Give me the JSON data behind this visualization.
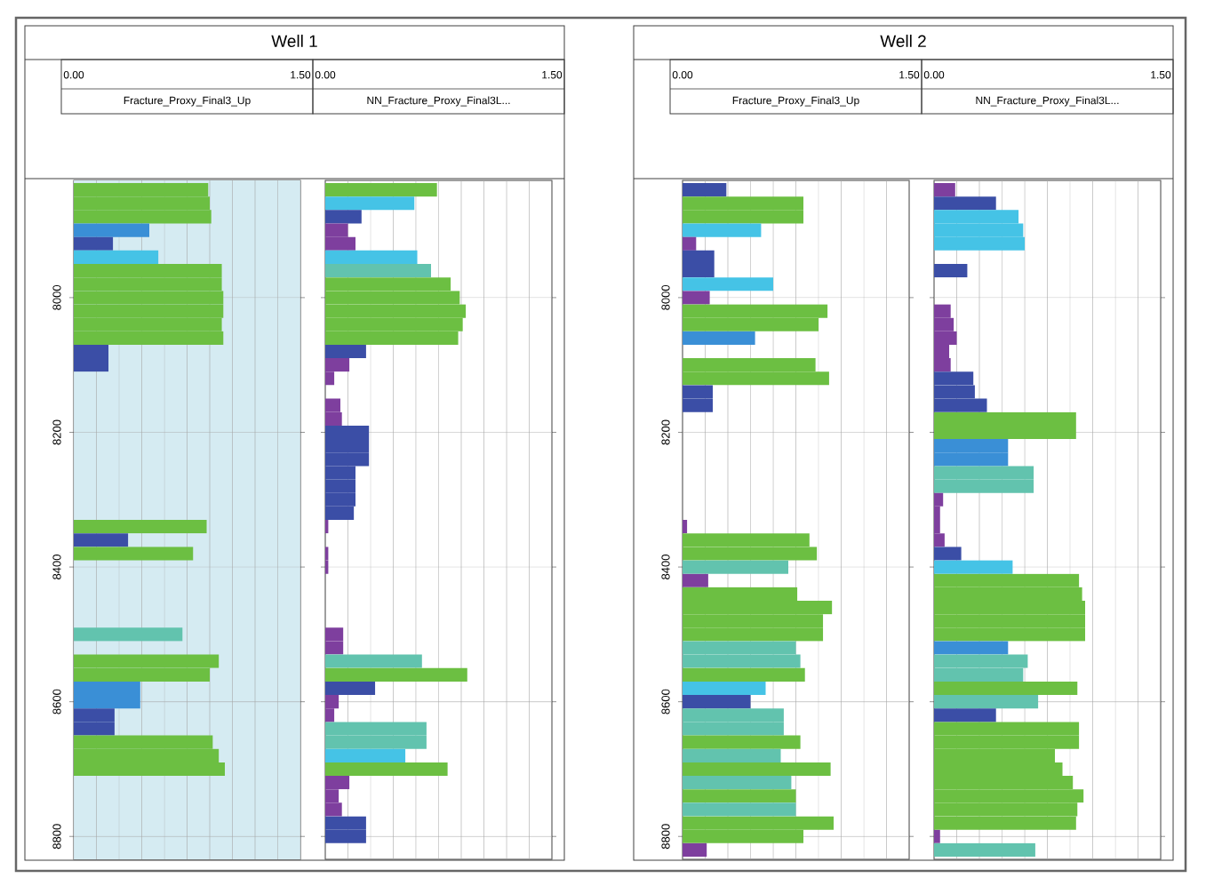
{
  "chart_data": [
    {
      "type": "bar",
      "orientation": "horizontal",
      "title": "Well 1",
      "xlabel": "Fracture_Proxy_Final3_Up",
      "x": [
        7840,
        7860,
        7880,
        7900,
        7920,
        7940,
        7960,
        7980,
        8000,
        8020,
        8040,
        8060,
        8080,
        8100,
        8120,
        8140,
        8160,
        8180,
        8200,
        8220,
        8240,
        8260,
        8280,
        8300,
        8320,
        8340,
        8360,
        8380,
        8400,
        8420,
        8440,
        8460,
        8480,
        8500,
        8520,
        8540,
        8560,
        8580,
        8600,
        8620,
        8640,
        8660,
        8680,
        8700
      ],
      "values": [
        0.89,
        0.9,
        0.91,
        0.5,
        0.26,
        0.56,
        0.98,
        0.98,
        0.99,
        0.99,
        0.98,
        0.99,
        0.23,
        0.23,
        null,
        null,
        null,
        null,
        null,
        null,
        null,
        null,
        null,
        null,
        null,
        0.88,
        0.36,
        0.79,
        null,
        null,
        null,
        null,
        null,
        0.72,
        null,
        0.96,
        0.9,
        0.44,
        0.44,
        0.27,
        0.27,
        0.92,
        0.96,
        1.0
      ],
      "colors": [
        "#6cbf42",
        "#6cbf42",
        "#6cbf42",
        "#3a8fd6",
        "#3b4ea6",
        "#45c3e6",
        "#6cbf42",
        "#6cbf42",
        "#6cbf42",
        "#6cbf42",
        "#6cbf42",
        "#6cbf42",
        "#3b4ea6",
        "#3b4ea6",
        null,
        null,
        null,
        null,
        null,
        null,
        null,
        null,
        null,
        null,
        null,
        "#6cbf42",
        "#3b4ea6",
        "#6cbf42",
        null,
        null,
        null,
        null,
        null,
        "#62c3ae",
        null,
        "#6cbf42",
        "#6cbf42",
        "#3a8fd6",
        "#3a8fd6",
        "#3b4ea6",
        "#3b4ea6",
        "#6cbf42",
        "#6cbf42",
        "#6cbf42"
      ],
      "xlim": [
        0,
        1.5
      ],
      "xticks": [
        {
          "value": 0,
          "label": "0.00"
        },
        {
          "value": 0.15,
          "label": null
        },
        {
          "value": 0.3,
          "label": null
        },
        {
          "value": 0.45,
          "label": null
        },
        {
          "value": 0.6,
          "label": null
        },
        {
          "value": 0.75,
          "label": null
        },
        {
          "value": 0.9,
          "label": null
        },
        {
          "value": 1.05,
          "label": null
        },
        {
          "value": 1.2,
          "label": null
        },
        {
          "value": 1.35,
          "label": null
        },
        {
          "value": 1.5,
          "label": "1.50"
        }
      ],
      "ylim": [
        8834,
        7826
      ],
      "yticks": [
        8000,
        8200,
        8400,
        8600,
        8800
      ],
      "grid": true,
      "bands": [
        {
          "axis": "x",
          "from": 0,
          "to": 1.5,
          "color": "#d5ebf2"
        }
      ]
    },
    {
      "type": "bar",
      "orientation": "horizontal",
      "xlabel": "NN_Fracture_Proxy_Final3L...",
      "x": [
        7840,
        7860,
        7880,
        7900,
        7920,
        7940,
        7960,
        7980,
        8000,
        8020,
        8040,
        8060,
        8080,
        8100,
        8120,
        8140,
        8160,
        8180,
        8200,
        8220,
        8240,
        8260,
        8280,
        8300,
        8320,
        8340,
        8360,
        8380,
        8400,
        8420,
        8440,
        8460,
        8480,
        8500,
        8520,
        8540,
        8560,
        8580,
        8600,
        8620,
        8640,
        8660,
        8680,
        8700,
        8720,
        8740,
        8760,
        8780,
        8800
      ],
      "values": [
        0.74,
        0.59,
        0.24,
        0.15,
        0.2,
        0.61,
        0.7,
        0.83,
        0.89,
        0.93,
        0.91,
        0.88,
        0.27,
        0.16,
        0.06,
        null,
        0.1,
        0.11,
        0.29,
        0.29,
        0.29,
        0.2,
        0.2,
        0.2,
        0.19,
        0.02,
        null,
        0.02,
        0.02,
        null,
        null,
        null,
        null,
        0.12,
        0.12,
        0.64,
        0.94,
        0.33,
        0.09,
        0.06,
        0.67,
        0.67,
        0.53,
        0.81,
        0.16,
        0.09,
        0.11,
        0.27,
        0.27
      ],
      "colors": [
        "#6cbf42",
        "#45c3e6",
        "#3b4ea6",
        "#7e3f9e",
        "#7e3f9e",
        "#45c3e6",
        "#62c3ae",
        "#6cbf42",
        "#6cbf42",
        "#6cbf42",
        "#6cbf42",
        "#6cbf42",
        "#3b4ea6",
        "#7e3f9e",
        "#7e3f9e",
        null,
        "#7e3f9e",
        "#7e3f9e",
        "#3b4ea6",
        "#3b4ea6",
        "#3b4ea6",
        "#3b4ea6",
        "#3b4ea6",
        "#3b4ea6",
        "#3b4ea6",
        "#7e3f9e",
        null,
        "#7e3f9e",
        "#7e3f9e",
        null,
        null,
        null,
        null,
        "#7e3f9e",
        "#7e3f9e",
        "#62c3ae",
        "#6cbf42",
        "#3b4ea6",
        "#7e3f9e",
        "#7e3f9e",
        "#62c3ae",
        "#62c3ae",
        "#45c3e6",
        "#6cbf42",
        "#7e3f9e",
        "#7e3f9e",
        "#7e3f9e",
        "#3b4ea6",
        "#3b4ea6"
      ],
      "xlim": [
        0,
        1.5
      ],
      "xticks": [
        {
          "value": 0,
          "label": "0.00"
        },
        {
          "value": 0.15,
          "label": null
        },
        {
          "value": 0.3,
          "label": null
        },
        {
          "value": 0.45,
          "label": null
        },
        {
          "value": 0.6,
          "label": null
        },
        {
          "value": 0.75,
          "label": null
        },
        {
          "value": 0.9,
          "label": null
        },
        {
          "value": 1.05,
          "label": null
        },
        {
          "value": 1.2,
          "label": null
        },
        {
          "value": 1.35,
          "label": null
        },
        {
          "value": 1.5,
          "label": "1.50"
        }
      ],
      "ylim": [
        8834,
        7826
      ],
      "yticks": [
        8000,
        8200,
        8400,
        8600,
        8800
      ],
      "grid": true,
      "tick_labels": "x"
    },
    {
      "type": "bar",
      "orientation": "horizontal",
      "title": "Well 2",
      "xlabel": "Fracture_Proxy_Final3_Up",
      "x": [
        7840,
        7860,
        7880,
        7900,
        7920,
        7940,
        7960,
        7980,
        8000,
        8020,
        8040,
        8060,
        8080,
        8100,
        8120,
        8140,
        8160,
        8180,
        8200,
        8220,
        8240,
        8260,
        8280,
        8300,
        8320,
        8340,
        8360,
        8380,
        8400,
        8420,
        8440,
        8460,
        8480,
        8500,
        8520,
        8540,
        8560,
        8580,
        8600,
        8620,
        8640,
        8660,
        8680,
        8700,
        8720,
        8740,
        8760,
        8780,
        8800,
        8820
      ],
      "values": [
        0.29,
        0.8,
        0.8,
        0.52,
        0.09,
        0.21,
        0.21,
        0.6,
        0.18,
        0.96,
        0.9,
        0.48,
        null,
        0.88,
        0.97,
        0.2,
        0.2,
        null,
        null,
        null,
        null,
        null,
        null,
        null,
        null,
        0.03,
        0.84,
        0.89,
        0.7,
        0.17,
        0.76,
        0.99,
        0.93,
        0.93,
        0.75,
        0.78,
        0.81,
        0.55,
        0.45,
        0.67,
        0.67,
        0.78,
        0.65,
        0.98,
        0.72,
        0.75,
        0.75,
        1.0,
        0.8,
        0.16
      ],
      "colors": [
        "#3b4ea6",
        "#6cbf42",
        "#6cbf42",
        "#45c3e6",
        "#7e3f9e",
        "#3b4ea6",
        "#3b4ea6",
        "#45c3e6",
        "#7e3f9e",
        "#6cbf42",
        "#6cbf42",
        "#3a8fd6",
        null,
        "#6cbf42",
        "#6cbf42",
        "#3b4ea6",
        "#3b4ea6",
        null,
        null,
        null,
        null,
        null,
        null,
        null,
        null,
        "#7e3f9e",
        "#6cbf42",
        "#6cbf42",
        "#62c3ae",
        "#7e3f9e",
        "#6cbf42",
        "#6cbf42",
        "#6cbf42",
        "#6cbf42",
        "#62c3ae",
        "#62c3ae",
        "#6cbf42",
        "#45c3e6",
        "#3b4ea6",
        "#62c3ae",
        "#62c3ae",
        "#6cbf42",
        "#62c3ae",
        "#6cbf42",
        "#62c3ae",
        "#6cbf42",
        "#62c3ae",
        "#6cbf42",
        "#6cbf42",
        "#7e3f9e"
      ],
      "xlim": [
        0,
        1.5
      ],
      "xticks": [
        {
          "value": 0,
          "label": "0.00"
        },
        {
          "value": 0.15,
          "label": null
        },
        {
          "value": 0.3,
          "label": null
        },
        {
          "value": 0.45,
          "label": null
        },
        {
          "value": 0.6,
          "label": null
        },
        {
          "value": 0.75,
          "label": null
        },
        {
          "value": 0.9,
          "label": null
        },
        {
          "value": 1.05,
          "label": null
        },
        {
          "value": 1.2,
          "label": null
        },
        {
          "value": 1.35,
          "label": null
        },
        {
          "value": 1.5,
          "label": "1.50"
        }
      ],
      "ylim": [
        8834,
        7826
      ],
      "yticks": [
        8000,
        8200,
        8400,
        8600,
        8800
      ],
      "grid": true
    },
    {
      "type": "bar",
      "orientation": "horizontal",
      "xlabel": "NN_Fracture_Proxy_Final3L...",
      "x": [
        7840,
        7860,
        7880,
        7900,
        7920,
        7940,
        7960,
        7980,
        8000,
        8020,
        8040,
        8060,
        8080,
        8100,
        8120,
        8140,
        8160,
        8180,
        8200,
        8220,
        8240,
        8260,
        8280,
        8300,
        8320,
        8340,
        8360,
        8380,
        8400,
        8420,
        8440,
        8460,
        8480,
        8500,
        8520,
        8540,
        8560,
        8580,
        8600,
        8620,
        8640,
        8660,
        8680,
        8700,
        8720,
        8740,
        8760,
        8780,
        8800,
        8820
      ],
      "values": [
        0.14,
        0.41,
        0.56,
        0.59,
        0.6,
        null,
        0.22,
        null,
        null,
        0.11,
        0.13,
        0.15,
        0.1,
        0.11,
        0.26,
        0.27,
        0.35,
        0.94,
        0.94,
        0.49,
        0.49,
        0.66,
        0.66,
        0.06,
        0.04,
        0.04,
        0.07,
        0.18,
        0.52,
        0.96,
        0.98,
        1.0,
        1.0,
        1.0,
        0.49,
        0.62,
        0.59,
        0.95,
        0.69,
        0.41,
        0.96,
        0.96,
        0.8,
        0.85,
        0.92,
        0.99,
        0.95,
        0.94,
        0.04,
        0.67
      ],
      "colors": [
        "#7e3f9e",
        "#3b4ea6",
        "#45c3e6",
        "#45c3e6",
        "#45c3e6",
        null,
        "#3b4ea6",
        null,
        null,
        "#7e3f9e",
        "#7e3f9e",
        "#7e3f9e",
        "#7e3f9e",
        "#7e3f9e",
        "#3b4ea6",
        "#3b4ea6",
        "#3b4ea6",
        "#6cbf42",
        "#6cbf42",
        "#3a8fd6",
        "#3a8fd6",
        "#62c3ae",
        "#62c3ae",
        "#7e3f9e",
        "#7e3f9e",
        "#7e3f9e",
        "#7e3f9e",
        "#3b4ea6",
        "#45c3e6",
        "#6cbf42",
        "#6cbf42",
        "#6cbf42",
        "#6cbf42",
        "#6cbf42",
        "#3a8fd6",
        "#62c3ae",
        "#62c3ae",
        "#6cbf42",
        "#62c3ae",
        "#3b4ea6",
        "#6cbf42",
        "#6cbf42",
        "#6cbf42",
        "#6cbf42",
        "#6cbf42",
        "#6cbf42",
        "#6cbf42",
        "#6cbf42",
        "#7e3f9e",
        "#62c3ae"
      ],
      "xlim": [
        0,
        1.5
      ],
      "xticks": [
        {
          "value": 0,
          "label": "0.00"
        },
        {
          "value": 0.15,
          "label": null
        },
        {
          "value": 0.3,
          "label": null
        },
        {
          "value": 0.45,
          "label": null
        },
        {
          "value": 0.6,
          "label": null
        },
        {
          "value": 0.75,
          "label": null
        },
        {
          "value": 0.9,
          "label": null
        },
        {
          "value": 1.05,
          "label": null
        },
        {
          "value": 1.2,
          "label": null
        },
        {
          "value": 1.35,
          "label": null
        },
        {
          "value": 1.5,
          "label": "1.50"
        }
      ],
      "ylim": [
        8834,
        7826
      ],
      "yticks": [
        8000,
        8200,
        8400,
        8600,
        8800
      ],
      "grid": true,
      "tick_labels": "x"
    }
  ]
}
